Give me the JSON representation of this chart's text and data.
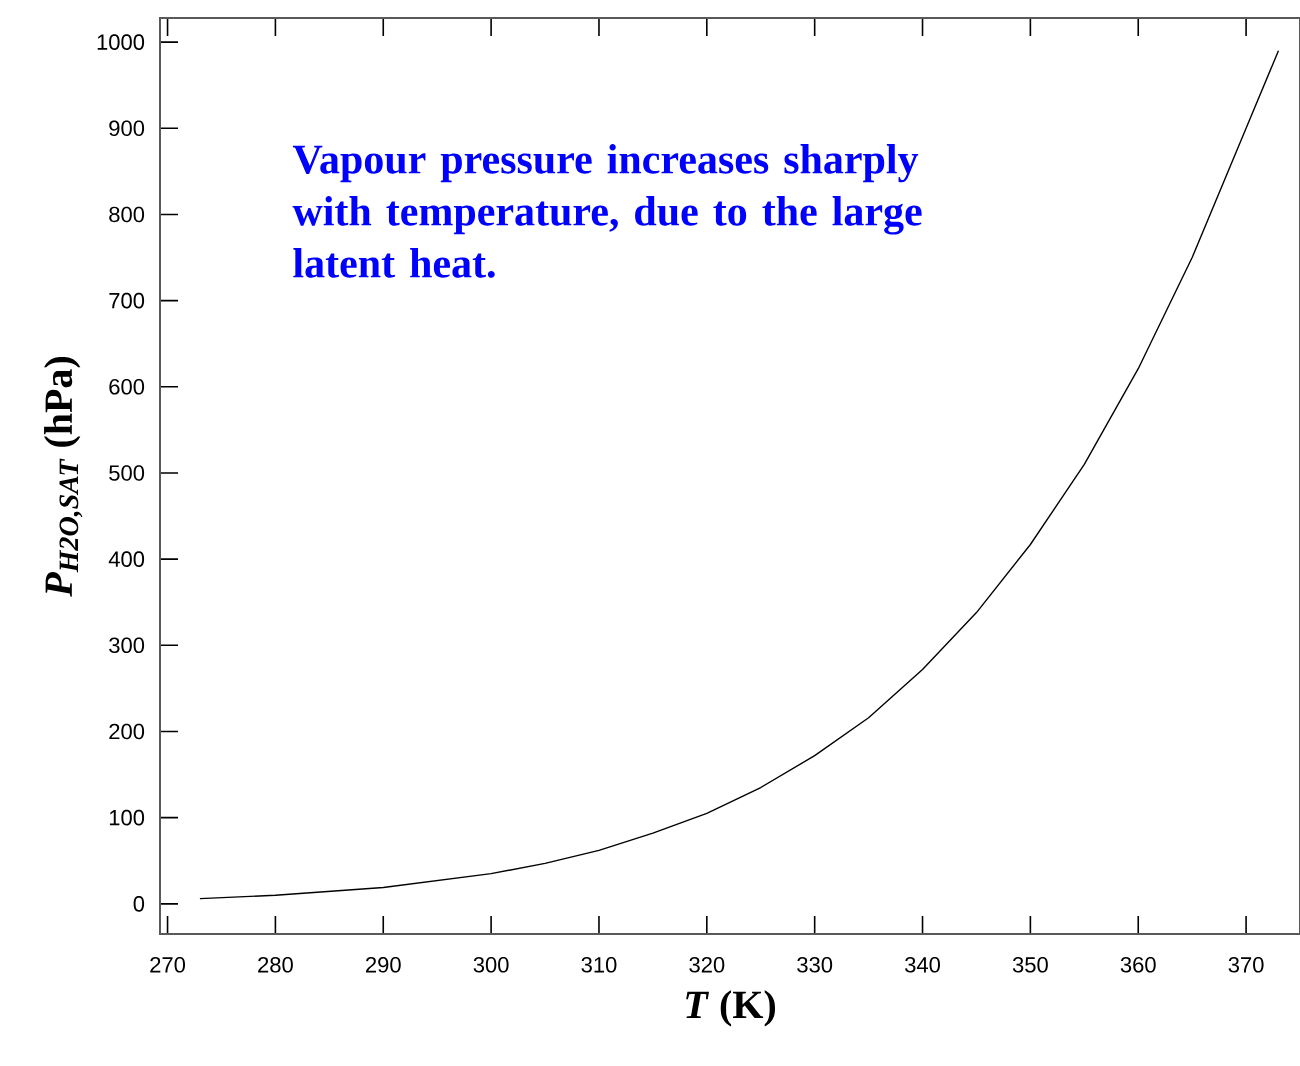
{
  "chart_data": {
    "type": "line",
    "xlabel": "*T* (K)",
    "ylabel": "*P$_{H2O,SAT}$* (hPa)",
    "annotations": [
      "Vapour pressure increases sharply with temperature, due to the large latent heat."
    ],
    "x": [
      273,
      280,
      290,
      300,
      305,
      310,
      315,
      320,
      325,
      330,
      335,
      340,
      345,
      350,
      355,
      360,
      365,
      370,
      373
    ],
    "series": [
      {
        "color": "#000000",
        "values": [
          6,
          10,
          19,
          35,
          47,
          62,
          82,
          105,
          135,
          172,
          216,
          272,
          338,
          417,
          510,
          621,
          750,
          900,
          990
        ]
      }
    ],
    "xlim": [
      269.3,
      375
    ],
    "ylim": [
      -35,
      1028
    ],
    "xticks": [
      270,
      280,
      290,
      300,
      310,
      320,
      330,
      340,
      350,
      360,
      370
    ],
    "yticks": [
      0,
      100,
      200,
      300,
      400,
      500,
      600,
      700,
      800,
      900,
      1000
    ],
    "marker": "none",
    "line_style": "solid"
  }
}
